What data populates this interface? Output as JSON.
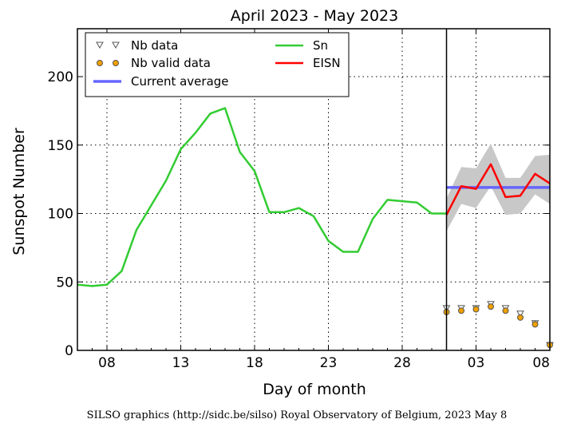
{
  "chart_data": {
    "type": "line",
    "title": "April 2023 - May 2023",
    "xlabel": "Day of month",
    "ylabel": "Sunspot Number",
    "ylim": [
      0,
      235
    ],
    "x_tick_labels": [
      "08",
      "13",
      "18",
      "23",
      "28",
      "03",
      "08"
    ],
    "y_tick_labels": [
      "0",
      "50",
      "100",
      "150",
      "200"
    ],
    "y_ticks": [
      0,
      50,
      100,
      150,
      200
    ],
    "grid": true,
    "legend_position": "top-left",
    "sn_series": {
      "name": "Sn",
      "color": "#33cc33",
      "x": [
        "2023-04-06",
        "2023-04-07",
        "2023-04-08",
        "2023-04-09",
        "2023-04-10",
        "2023-04-11",
        "2023-04-12",
        "2023-04-13",
        "2023-04-14",
        "2023-04-15",
        "2023-04-16",
        "2023-04-17",
        "2023-04-18",
        "2023-04-19",
        "2023-04-20",
        "2023-04-21",
        "2023-04-22",
        "2023-04-23",
        "2023-04-24",
        "2023-04-25",
        "2023-04-26",
        "2023-04-27",
        "2023-04-28",
        "2023-04-29",
        "2023-04-30",
        "2023-05-01"
      ],
      "y": [
        48,
        47,
        48,
        58,
        88,
        106,
        124,
        147,
        159,
        173,
        177,
        145,
        131,
        101,
        101,
        104,
        98,
        80,
        72,
        72,
        96,
        110,
        109,
        108,
        100,
        100
      ]
    },
    "eisn_series": {
      "name": "EISN",
      "color": "#ff0000",
      "band_color": "#c8c8c8",
      "x": [
        "2023-05-01",
        "2023-05-02",
        "2023-05-03",
        "2023-05-04",
        "2023-05-05",
        "2023-05-06",
        "2023-05-07",
        "2023-05-08"
      ],
      "y": [
        99,
        120,
        118,
        136,
        112,
        113,
        129,
        122
      ],
      "band_low": [
        87,
        107,
        104,
        120,
        99,
        100,
        114,
        107
      ],
      "band_high": [
        111,
        134,
        133,
        151,
        126,
        126,
        142,
        143
      ]
    },
    "current_average": {
      "name": "Current average",
      "color": "#6666ff",
      "value": 119,
      "x_start": "2023-05-01",
      "x_end": "2023-05-08"
    },
    "nb_data": {
      "name": "Nb data",
      "x": [
        "2023-05-01",
        "2023-05-02",
        "2023-05-03",
        "2023-05-04",
        "2023-05-05",
        "2023-05-06",
        "2023-05-07",
        "2023-05-08"
      ],
      "y": [
        31,
        31,
        31,
        34,
        31,
        27,
        20,
        4
      ]
    },
    "nb_valid_data": {
      "name": "Nb valid data",
      "color": "#f0a000",
      "x": [
        "2023-05-01",
        "2023-05-02",
        "2023-05-03",
        "2023-05-04",
        "2023-05-05",
        "2023-05-06",
        "2023-05-07",
        "2023-05-08"
      ],
      "y": [
        28,
        29,
        30,
        32,
        29,
        24,
        19,
        4
      ]
    },
    "current_month_marker": "2023-05-01",
    "credit": "SILSO graphics (http://sidc.be/silso) Royal Observatory of Belgium, 2023 May 8"
  }
}
